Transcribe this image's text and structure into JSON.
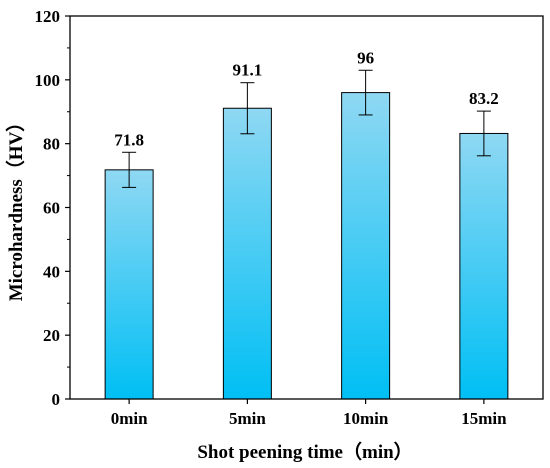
{
  "chart_data": {
    "type": "bar",
    "categories": [
      "0min",
      "5min",
      "10min",
      "15min"
    ],
    "values": [
      71.8,
      91.1,
      96,
      83.2
    ],
    "value_labels": [
      "71.8",
      "91.1",
      "96",
      "83.2"
    ],
    "errors": [
      5.5,
      8,
      7,
      7
    ],
    "xlabel": "Shot peening time（min）",
    "ylabel": "Microhardness（HV）",
    "ylim": [
      0,
      120
    ],
    "yticks": [
      0,
      20,
      40,
      60,
      80,
      100,
      120
    ],
    "ytick_labels": [
      "0",
      "20",
      "40",
      "60",
      "80",
      "100",
      "120"
    ],
    "bar_gradient": {
      "top": "#8fd8f3",
      "bottom": "#00bff4"
    },
    "bar_edge_color": "#000000",
    "grid": false,
    "legend": "none"
  }
}
